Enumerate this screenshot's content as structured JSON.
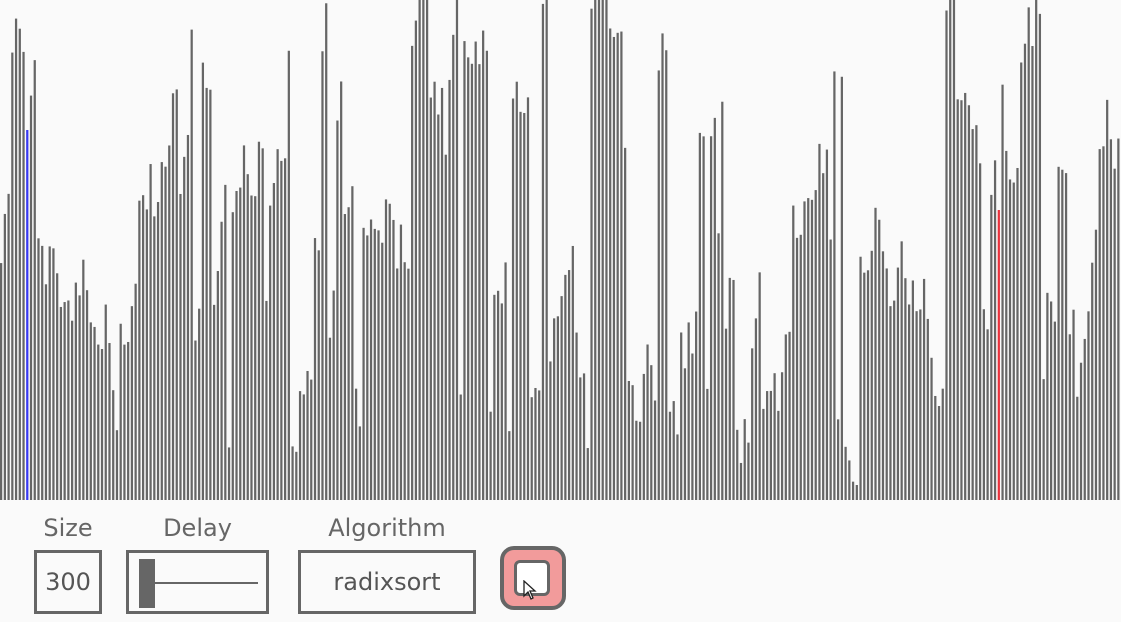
{
  "colors": {
    "bar": "#666666",
    "compare_left": "#3a3af0",
    "compare_right": "#e8323c",
    "background": "#fafafa",
    "button_fill": "#f29b9b"
  },
  "controls": {
    "size_label": "Size",
    "size_value": "300",
    "delay_label": "Delay",
    "delay_level": 0.05,
    "algorithm_label": "Algorithm",
    "algorithm_value": "radixsort"
  },
  "visualizer": {
    "bar_count": 300,
    "highlight_left_index": 7,
    "highlight_right_index": 267
  },
  "icons": {
    "run_button": "toggle-button-icon",
    "cursor": "mouse-pointer-icon"
  }
}
